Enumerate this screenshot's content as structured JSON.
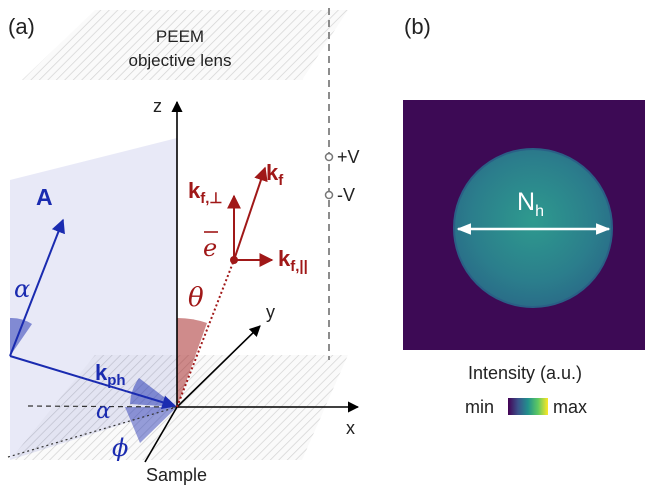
{
  "panel_a": {
    "label": "(a)",
    "lens_line1": "PEEM",
    "lens_line2": "objective lens",
    "axis_z": "z",
    "axis_y": "y",
    "axis_x": "x",
    "plus_v": "+V",
    "minus_v": "-V",
    "vec_A": "A",
    "vec_kph_main": "k",
    "vec_kph_sub": "ph",
    "vec_kf_main": "k",
    "vec_kf_sub": "f",
    "vec_kfperp_main": "k",
    "vec_kfperp_sub": "f,⊥",
    "vec_kfpar_main": "k",
    "vec_kfpar_sub": "f,||",
    "electron": "e",
    "angle_alpha_1": "α",
    "angle_alpha_2": "α",
    "angle_theta": "θ",
    "angle_phi": "ϕ",
    "sample_label": "Sample"
  },
  "panel_b": {
    "label": "(b)",
    "nh_main": "N",
    "nh_sub": "h",
    "colorbar_title": "Intensity (a.u.)",
    "colorbar_min": "min",
    "colorbar_max": "max"
  },
  "colors": {
    "blue": "#1a2bb0",
    "red": "#a01818",
    "detector_bg": "#3d0a55",
    "spot": "#2c8d8a"
  }
}
